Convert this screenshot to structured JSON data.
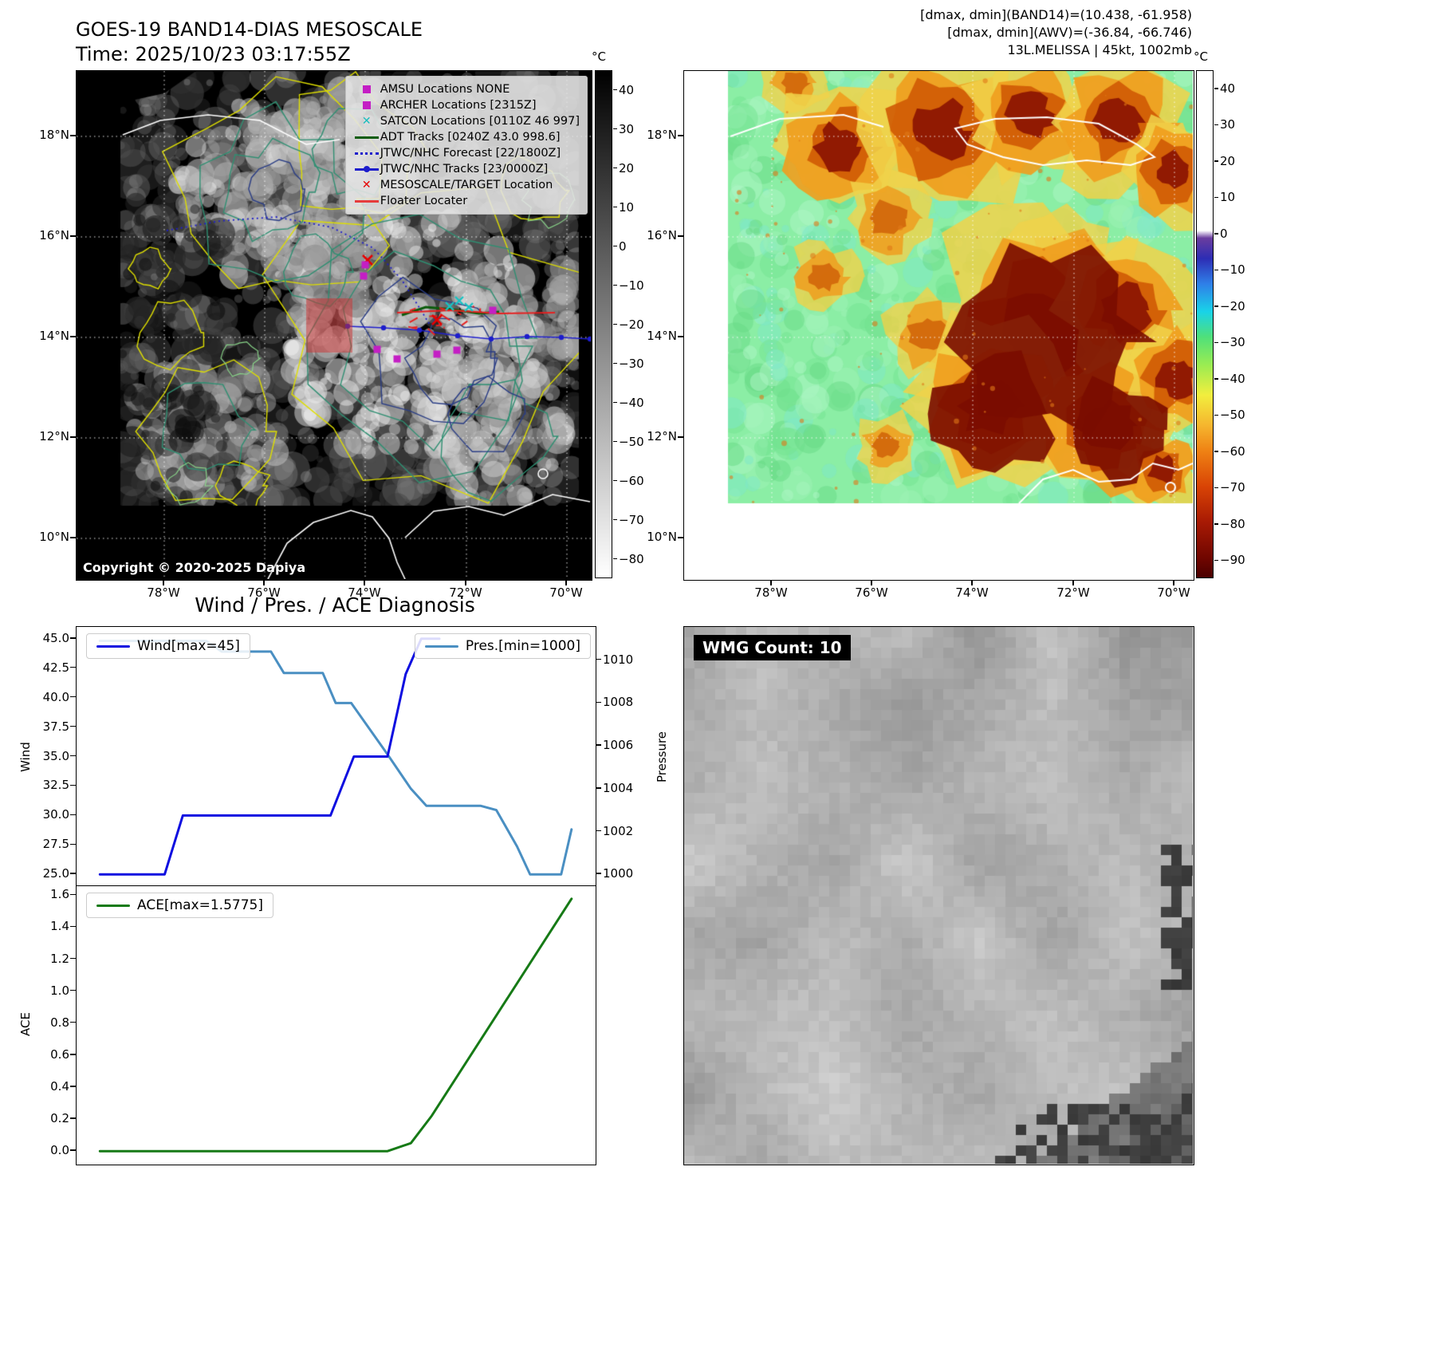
{
  "band14": {
    "title_line1": "GOES-19 BAND14-DIAS MESOSCALE",
    "title_line2": "Time: 2025/10/23 03:17:55Z",
    "copyright": "Copyright © 2020-2025 Dapiya",
    "lat_ticks": [
      "18°N",
      "16°N",
      "14°N",
      "12°N",
      "10°N"
    ],
    "lon_ticks": [
      "78°W",
      "76°W",
      "74°W",
      "72°W",
      "70°W"
    ],
    "colorbar": {
      "unit": "°C",
      "ticks": [
        [
          40,
          "40"
        ],
        [
          30,
          "30"
        ],
        [
          20,
          "20"
        ],
        [
          10,
          "10"
        ],
        [
          0,
          "0"
        ],
        [
          -10,
          "−10"
        ],
        [
          -20,
          "−20"
        ],
        [
          -30,
          "−30"
        ],
        [
          -40,
          "−40"
        ],
        [
          -50,
          "−50"
        ],
        [
          -60,
          "−60"
        ],
        [
          -70,
          "−70"
        ],
        [
          -80,
          "−80"
        ]
      ]
    },
    "legend": [
      {
        "label": "AMSU Locations NONE",
        "marker": "square",
        "color": "#c41ec4"
      },
      {
        "label": "ARCHER Locations [2315Z]",
        "marker": "square",
        "color": "#c41ec4"
      },
      {
        "label": "SATCON Locations [0110Z 46 997]",
        "marker": "x",
        "color": "#17bdbd"
      },
      {
        "label": "ADT Tracks [0240Z 43.0 998.6]",
        "marker": "line",
        "color": "#0b5c0b"
      },
      {
        "label": "JTWC/NHC Forecast [22/1800Z]",
        "marker": "dotted",
        "color": "#1d1dcc"
      },
      {
        "label": "JTWC/NHC Tracks [23/0000Z]",
        "marker": "line-dot",
        "color": "#1d1dcc"
      },
      {
        "label": "MESOSCALE/TARGET Location",
        "marker": "x",
        "color": "#e60000"
      },
      {
        "label": "Floater Locater",
        "marker": "line",
        "color": "#e63c3c"
      }
    ]
  },
  "awv": {
    "header_line1": "[dmax, dmin](BAND14)=(10.438, -61.958)",
    "header_line2": "[dmax, dmin](AWV)=(-36.84, -66.746)",
    "header_line3": "13L.MELISSA | 45kt, 1002mb",
    "lat_ticks": [
      "18°N",
      "16°N",
      "14°N",
      "12°N",
      "10°N"
    ],
    "lon_ticks": [
      "78°W",
      "76°W",
      "74°W",
      "72°W",
      "70°W"
    ],
    "colorbar": {
      "unit": "°C",
      "ticks": [
        [
          40,
          "40"
        ],
        [
          30,
          "30"
        ],
        [
          20,
          "20"
        ],
        [
          10,
          "10"
        ],
        [
          0,
          "0"
        ],
        [
          -10,
          "−10"
        ],
        [
          -20,
          "−20"
        ],
        [
          -30,
          "−30"
        ],
        [
          -40,
          "−40"
        ],
        [
          -50,
          "−50"
        ],
        [
          -60,
          "−60"
        ],
        [
          -70,
          "−70"
        ],
        [
          -80,
          "−80"
        ],
        [
          -90,
          "−90"
        ]
      ]
    }
  },
  "diagnosis_title": "Wind / Pres. / ACE Diagnosis",
  "wmg": {
    "label": "WMG Count: 10"
  },
  "chart_data": [
    {
      "type": "line",
      "title": "Wind / Pres. / ACE Diagnosis",
      "grid": false,
      "legend_position": "upper-left and upper-right",
      "left_axis": {
        "label": "Wind",
        "range": [
          24,
          46
        ],
        "ticks": [
          [
            25,
            "25.0"
          ],
          [
            27.5,
            "27.5"
          ],
          [
            30,
            "30.0"
          ],
          [
            32.5,
            "32.5"
          ],
          [
            35,
            "35.0"
          ],
          [
            37.5,
            "37.5"
          ],
          [
            40,
            "40.0"
          ],
          [
            42.5,
            "42.5"
          ],
          [
            45,
            "45.0"
          ]
        ]
      },
      "right_axis": {
        "label": "Pressure",
        "range": [
          999.45,
          1011.55
        ],
        "ticks": [
          [
            1000,
            "1000"
          ],
          [
            1002,
            "1002"
          ],
          [
            1004,
            "1004"
          ],
          [
            1006,
            "1006"
          ],
          [
            1008,
            "1008"
          ],
          [
            1010,
            "1010"
          ]
        ]
      },
      "series": [
        {
          "name": "Wind[max=45]",
          "color": "#0e0ee0",
          "axis": "left",
          "points": [
            [
              0.045,
              25
            ],
            [
              0.17,
              25
            ],
            [
              0.205,
              30
            ],
            [
              0.49,
              30
            ],
            [
              0.535,
              35
            ],
            [
              0.6,
              35
            ],
            [
              0.635,
              42
            ],
            [
              0.665,
              45
            ],
            [
              0.7,
              45
            ]
          ]
        },
        {
          "name": "Pres.[min=1000]",
          "color": "#4a8fc2",
          "axis": "right",
          "points": [
            [
              0.045,
              1010.9
            ],
            [
              0.25,
              1010.9
            ],
            [
              0.28,
              1010.4
            ],
            [
              0.375,
              1010.4
            ],
            [
              0.4,
              1009.4
            ],
            [
              0.475,
              1009.4
            ],
            [
              0.5,
              1008
            ],
            [
              0.53,
              1008
            ],
            [
              0.6,
              1005.6
            ],
            [
              0.645,
              1004
            ],
            [
              0.675,
              1003.2
            ],
            [
              0.78,
              1003.2
            ],
            [
              0.81,
              1003
            ],
            [
              0.85,
              1001.3
            ],
            [
              0.875,
              1000
            ],
            [
              0.935,
              1000
            ],
            [
              0.955,
              1002.1
            ]
          ]
        }
      ]
    },
    {
      "type": "line",
      "grid": false,
      "legend_position": "upper-left",
      "left_axis": {
        "label": "ACE",
        "range": [
          -0.0789,
          1.6564
        ],
        "ticks": [
          [
            0,
            "0.0"
          ],
          [
            0.2,
            "0.2"
          ],
          [
            0.4,
            "0.4"
          ],
          [
            0.6,
            "0.6"
          ],
          [
            0.8,
            "0.8"
          ],
          [
            1,
            "1.0"
          ],
          [
            1.2,
            "1.2"
          ],
          [
            1.4,
            "1.4"
          ],
          [
            1.6,
            "1.6"
          ]
        ]
      },
      "series": [
        {
          "name": "ACE[max=1.5775]",
          "color": "#167a16",
          "axis": "left",
          "points": [
            [
              0.045,
              0
            ],
            [
              0.6,
              0
            ],
            [
              0.645,
              0.05
            ],
            [
              0.685,
              0.22
            ],
            [
              0.955,
              1.5775
            ]
          ]
        }
      ]
    }
  ]
}
